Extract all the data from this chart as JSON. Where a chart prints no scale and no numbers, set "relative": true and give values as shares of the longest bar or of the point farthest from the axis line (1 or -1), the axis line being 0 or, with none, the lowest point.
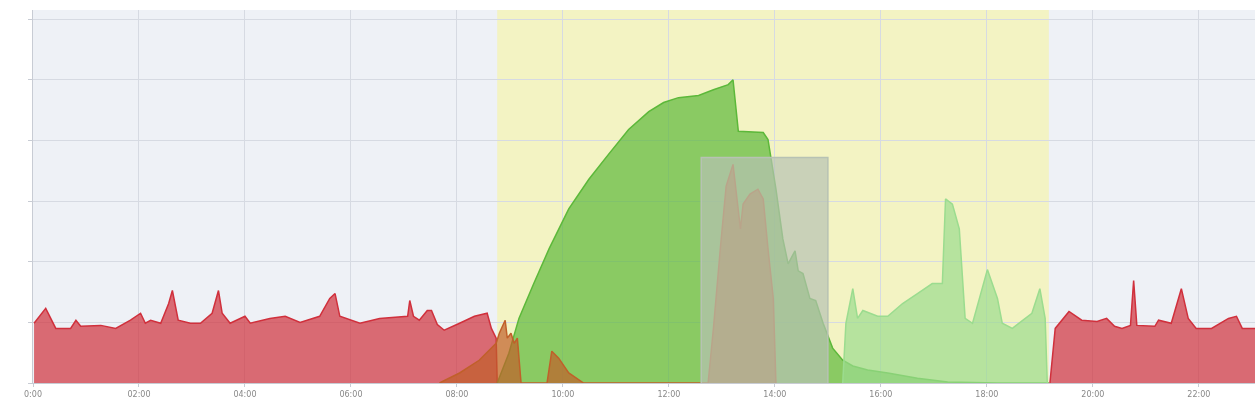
{
  "chart_data": {
    "type": "area",
    "relative": true,
    "grid": true,
    "xlim": [
      0,
      23.06
    ],
    "xticks": [
      {
        "value": 0,
        "label": "0:00"
      },
      {
        "value": 2,
        "label": "02:00"
      },
      {
        "value": 4,
        "label": "04:00"
      },
      {
        "value": 6,
        "label": "06:00"
      },
      {
        "value": 8,
        "label": "08:00"
      },
      {
        "value": 10,
        "label": "10:00"
      },
      {
        "value": 12,
        "label": "12:00"
      },
      {
        "value": 14,
        "label": "14:00"
      },
      {
        "value": 16,
        "label": "16:00"
      },
      {
        "value": 18,
        "label": "18:00"
      },
      {
        "value": 20,
        "label": "20:00"
      },
      {
        "value": 22,
        "label": "22:00"
      }
    ],
    "bands": [
      {
        "axis": "x",
        "from": 8.76,
        "to": 19.17,
        "color": "#f3f3c3"
      }
    ],
    "series": [
      {
        "color": "#d0303c",
        "x": [
          0.02,
          0.24,
          0.43,
          0.71,
          0.81,
          0.9,
          1.28,
          1.56,
          1.84,
          2.03,
          2.12,
          2.22,
          2.41,
          2.56,
          2.63,
          2.74,
          2.97,
          3.16,
          3.38,
          3.5,
          3.57,
          3.72,
          4.0,
          4.1,
          4.47,
          4.76,
          5.04,
          5.41,
          5.6,
          5.7,
          5.79,
          6.17,
          6.54,
          7.07,
          7.11,
          7.18,
          7.29,
          7.44,
          7.52,
          7.63,
          7.76,
          8.05,
          8.33,
          8.57,
          8.65,
          8.74,
          8.76
        ],
        "values": [
          0.197,
          0.246,
          0.18,
          0.18,
          0.207,
          0.187,
          0.19,
          0.18,
          0.207,
          0.23,
          0.197,
          0.207,
          0.197,
          0.262,
          0.305,
          0.207,
          0.197,
          0.197,
          0.23,
          0.305,
          0.23,
          0.197,
          0.22,
          0.197,
          0.213,
          0.22,
          0.2,
          0.22,
          0.279,
          0.295,
          0.22,
          0.197,
          0.213,
          0.22,
          0.272,
          0.22,
          0.207,
          0.239,
          0.239,
          0.193,
          0.174,
          0.197,
          0.22,
          0.23,
          0.18,
          0.148,
          0
        ]
      },
      {
        "color": "#d0303c",
        "x": [
          19.19,
          19.29,
          19.55,
          19.79,
          20.08,
          20.26,
          20.41,
          20.55,
          20.71,
          20.77,
          20.83,
          21.17,
          21.24,
          21.48,
          21.67,
          21.8,
          21.95,
          22.24,
          22.56,
          22.71,
          22.82,
          23.06
        ],
        "values": [
          0,
          0.18,
          0.236,
          0.207,
          0.203,
          0.213,
          0.187,
          0.18,
          0.19,
          0.338,
          0.19,
          0.187,
          0.207,
          0.197,
          0.311,
          0.213,
          0.18,
          0.18,
          0.213,
          0.22,
          0.18,
          0.18
        ]
      },
      {
        "color": "#5cb83a",
        "x": [
          8.76,
          8.98,
          9.17,
          9.45,
          9.74,
          10.11,
          10.49,
          10.86,
          11.24,
          11.62,
          11.9,
          12.18,
          12.56,
          12.84,
          13.12,
          13.21,
          13.31,
          13.78,
          13.87,
          14.02,
          14.15,
          14.25,
          14.38,
          14.44,
          14.53,
          14.66,
          14.77,
          14.91,
          15.09,
          15.28,
          15.47,
          15.75,
          16.13,
          16.69,
          17.26,
          18.2,
          19.17
        ],
        "values": [
          0,
          0.098,
          0.213,
          0.328,
          0.443,
          0.574,
          0.672,
          0.754,
          0.836,
          0.895,
          0.925,
          0.941,
          0.948,
          0.967,
          0.984,
          1,
          0.83,
          0.826,
          0.803,
          0.639,
          0.475,
          0.393,
          0.436,
          0.37,
          0.361,
          0.279,
          0.272,
          0.197,
          0.115,
          0.075,
          0.056,
          0.043,
          0.033,
          0.016,
          0.003,
          0,
          0
        ]
      },
      {
        "color": "#9bdc8f",
        "x": [
          15.28,
          15.34,
          15.47,
          15.56,
          15.66,
          15.94,
          16.13,
          16.41,
          16.69,
          16.97,
          17.16,
          17.22,
          17.35,
          17.48,
          17.59,
          17.73,
          18.01,
          18.2,
          18.29,
          18.48,
          18.85,
          19.0,
          19.1,
          19.14
        ],
        "values": [
          0,
          0.197,
          0.311,
          0.213,
          0.239,
          0.22,
          0.22,
          0.262,
          0.295,
          0.328,
          0.328,
          0.607,
          0.59,
          0.508,
          0.213,
          0.197,
          0.374,
          0.279,
          0.197,
          0.18,
          0.23,
          0.311,
          0.213,
          0
        ]
      },
      {
        "color": "#c0602a",
        "x": [
          7.67,
          8.05,
          8.42,
          8.74,
          8.8,
          8.91,
          8.95,
          9.02,
          9.08,
          9.14,
          9.21,
          9.7,
          9.79,
          9.92,
          10.11,
          10.39,
          12.74,
          12.84,
          12.97,
          13.08,
          13.21,
          13.35,
          13.4,
          13.53,
          13.68,
          13.78,
          13.87,
          13.97,
          14.02
        ],
        "values": [
          0,
          0.033,
          0.075,
          0.131,
          0.164,
          0.207,
          0.148,
          0.164,
          0.131,
          0.148,
          0,
          0,
          0.105,
          0.082,
          0.033,
          0,
          0,
          0.18,
          0.443,
          0.649,
          0.721,
          0.508,
          0.59,
          0.623,
          0.639,
          0.607,
          0.443,
          0.279,
          0
        ]
      },
      {
        "color": "#b7c2b4",
        "x": [
          12.61,
          12.61,
          15.0,
          15.0
        ],
        "values": [
          0,
          0.744,
          0.744,
          0
        ]
      }
    ]
  }
}
